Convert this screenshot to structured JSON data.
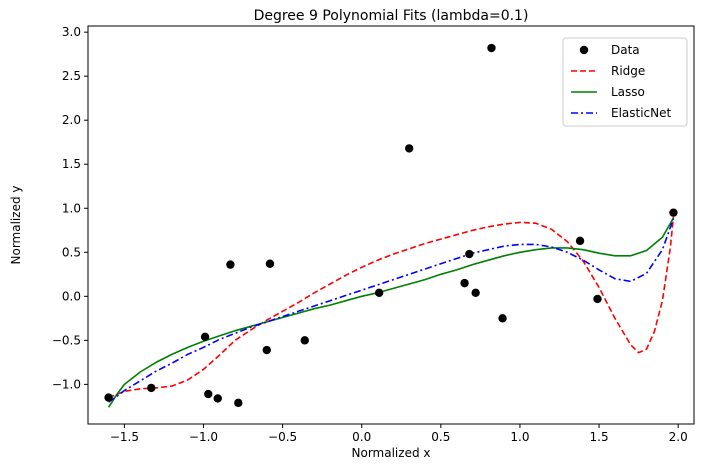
{
  "chart_data": {
    "type": "scatter",
    "title": "Degree 9 Polynomial Fits (lambda=0.1)",
    "xlabel": "Normalized x",
    "ylabel": "Normalized y",
    "xlim": [
      -1.73,
      2.1
    ],
    "ylim": [
      -1.45,
      3.07
    ],
    "x_ticks": [
      -1.5,
      -1.0,
      -0.5,
      0.0,
      0.5,
      1.0,
      1.5,
      2.0
    ],
    "x_tick_labels": [
      "−1.5",
      "−1.0",
      "−0.5",
      "0.0",
      "0.5",
      "1.0",
      "1.5",
      "2.0"
    ],
    "y_ticks": [
      -1.0,
      -0.5,
      0.0,
      0.5,
      1.0,
      1.5,
      2.0,
      2.5,
      3.0
    ],
    "y_tick_labels": [
      "−1.0",
      "−0.5",
      "0.0",
      "0.5",
      "1.0",
      "1.5",
      "2.0",
      "2.5",
      "3.0"
    ],
    "grid": false,
    "legend_position": "top-right",
    "series": [
      {
        "name": "Data",
        "kind": "scatter",
        "color": "#000000",
        "points": [
          [
            -1.6,
            -1.15
          ],
          [
            -1.33,
            -1.04
          ],
          [
            -0.99,
            -0.46
          ],
          [
            -0.97,
            -1.11
          ],
          [
            -0.91,
            -1.16
          ],
          [
            -0.83,
            0.36
          ],
          [
            -0.78,
            -1.21
          ],
          [
            -0.6,
            -0.61
          ],
          [
            -0.58,
            0.37
          ],
          [
            -0.36,
            -0.5
          ],
          [
            0.11,
            0.04
          ],
          [
            0.3,
            1.68
          ],
          [
            0.65,
            0.15
          ],
          [
            0.68,
            0.48
          ],
          [
            0.72,
            0.04
          ],
          [
            0.82,
            2.82
          ],
          [
            0.89,
            -0.25
          ],
          [
            1.38,
            0.63
          ],
          [
            1.49,
            -0.03
          ],
          [
            1.97,
            0.95
          ]
        ]
      },
      {
        "name": "Ridge",
        "kind": "line",
        "color": "#ff0000",
        "dash": "dashed",
        "points": [
          [
            -1.6,
            -1.15
          ],
          [
            -1.5,
            -1.08
          ],
          [
            -1.4,
            -1.05
          ],
          [
            -1.3,
            -1.04
          ],
          [
            -1.2,
            -1.02
          ],
          [
            -1.1,
            -0.95
          ],
          [
            -1.0,
            -0.83
          ],
          [
            -0.9,
            -0.67
          ],
          [
            -0.8,
            -0.5
          ],
          [
            -0.7,
            -0.38
          ],
          [
            -0.6,
            -0.27
          ],
          [
            -0.5,
            -0.17
          ],
          [
            -0.4,
            -0.07
          ],
          [
            -0.3,
            0.04
          ],
          [
            -0.2,
            0.14
          ],
          [
            -0.1,
            0.24
          ],
          [
            0.0,
            0.33
          ],
          [
            0.1,
            0.41
          ],
          [
            0.2,
            0.48
          ],
          [
            0.3,
            0.54
          ],
          [
            0.4,
            0.6
          ],
          [
            0.5,
            0.65
          ],
          [
            0.6,
            0.7
          ],
          [
            0.7,
            0.75
          ],
          [
            0.8,
            0.79
          ],
          [
            0.9,
            0.82
          ],
          [
            1.0,
            0.84
          ],
          [
            1.1,
            0.83
          ],
          [
            1.2,
            0.76
          ],
          [
            1.3,
            0.62
          ],
          [
            1.4,
            0.4
          ],
          [
            1.5,
            0.1
          ],
          [
            1.6,
            -0.25
          ],
          [
            1.7,
            -0.55
          ],
          [
            1.75,
            -0.64
          ],
          [
            1.8,
            -0.6
          ],
          [
            1.85,
            -0.4
          ],
          [
            1.9,
            -0.05
          ],
          [
            1.95,
            0.55
          ],
          [
            1.97,
            0.9
          ]
        ]
      },
      {
        "name": "Lasso",
        "kind": "line",
        "color": "#008000",
        "dash": "solid",
        "points": [
          [
            -1.6,
            -1.26
          ],
          [
            -1.55,
            -1.12
          ],
          [
            -1.5,
            -1.0
          ],
          [
            -1.4,
            -0.86
          ],
          [
            -1.3,
            -0.75
          ],
          [
            -1.2,
            -0.66
          ],
          [
            -1.1,
            -0.58
          ],
          [
            -1.0,
            -0.51
          ],
          [
            -0.9,
            -0.45
          ],
          [
            -0.8,
            -0.39
          ],
          [
            -0.7,
            -0.34
          ],
          [
            -0.6,
            -0.29
          ],
          [
            -0.5,
            -0.24
          ],
          [
            -0.4,
            -0.19
          ],
          [
            -0.3,
            -0.14
          ],
          [
            -0.2,
            -0.1
          ],
          [
            -0.1,
            -0.05
          ],
          [
            0.0,
            0.0
          ],
          [
            0.1,
            0.04
          ],
          [
            0.2,
            0.09
          ],
          [
            0.3,
            0.14
          ],
          [
            0.4,
            0.19
          ],
          [
            0.5,
            0.25
          ],
          [
            0.6,
            0.3
          ],
          [
            0.7,
            0.36
          ],
          [
            0.8,
            0.41
          ],
          [
            0.9,
            0.46
          ],
          [
            1.0,
            0.5
          ],
          [
            1.1,
            0.53
          ],
          [
            1.2,
            0.55
          ],
          [
            1.3,
            0.55
          ],
          [
            1.4,
            0.53
          ],
          [
            1.5,
            0.49
          ],
          [
            1.6,
            0.46
          ],
          [
            1.7,
            0.46
          ],
          [
            1.8,
            0.52
          ],
          [
            1.9,
            0.67
          ],
          [
            1.97,
            0.89
          ]
        ]
      },
      {
        "name": "ElasticNet",
        "kind": "line",
        "color": "#0000ff",
        "dash": "dashdot",
        "points": [
          [
            -1.6,
            -1.2
          ],
          [
            -1.55,
            -1.14
          ],
          [
            -1.5,
            -1.07
          ],
          [
            -1.4,
            -0.96
          ],
          [
            -1.3,
            -0.85
          ],
          [
            -1.2,
            -0.76
          ],
          [
            -1.1,
            -0.66
          ],
          [
            -1.0,
            -0.58
          ],
          [
            -0.9,
            -0.49
          ],
          [
            -0.8,
            -0.42
          ],
          [
            -0.7,
            -0.35
          ],
          [
            -0.6,
            -0.29
          ],
          [
            -0.5,
            -0.23
          ],
          [
            -0.4,
            -0.17
          ],
          [
            -0.3,
            -0.11
          ],
          [
            -0.2,
            -0.05
          ],
          [
            -0.1,
            0.01
          ],
          [
            0.0,
            0.07
          ],
          [
            0.1,
            0.13
          ],
          [
            0.2,
            0.19
          ],
          [
            0.3,
            0.25
          ],
          [
            0.4,
            0.31
          ],
          [
            0.5,
            0.37
          ],
          [
            0.6,
            0.43
          ],
          [
            0.7,
            0.49
          ],
          [
            0.8,
            0.53
          ],
          [
            0.9,
            0.57
          ],
          [
            1.0,
            0.59
          ],
          [
            1.1,
            0.59
          ],
          [
            1.2,
            0.56
          ],
          [
            1.3,
            0.5
          ],
          [
            1.4,
            0.41
          ],
          [
            1.5,
            0.3
          ],
          [
            1.6,
            0.2
          ],
          [
            1.7,
            0.17
          ],
          [
            1.8,
            0.26
          ],
          [
            1.9,
            0.53
          ],
          [
            1.97,
            0.88
          ]
        ]
      }
    ]
  }
}
